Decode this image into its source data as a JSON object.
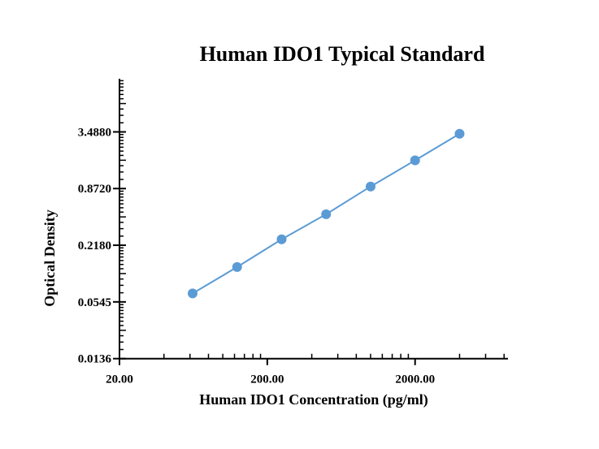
{
  "chart_data": {
    "type": "line",
    "title": "Human IDO1 Typical Standard",
    "xlabel": "Human IDO1 Concentration (pg/ml)",
    "ylabel": "Optical Density",
    "x_scale": "log",
    "y_scale": "log",
    "xlim": [
      20,
      8500
    ],
    "ylim": [
      0.0136,
      12.8
    ],
    "x_ticks": [
      "20.00",
      "200.00",
      "2000.00"
    ],
    "x_tick_values": [
      20,
      200,
      2000
    ],
    "y_ticks": [
      "0.0136",
      "0.0545",
      "0.2180",
      "0.8720",
      "3.4880"
    ],
    "y_tick_values": [
      0.0136,
      0.0545,
      0.218,
      0.872,
      3.488
    ],
    "grid": false,
    "series_color": "#5b9bd5",
    "x": [
      62.5,
      125,
      250,
      500,
      1000,
      2000,
      4000
    ],
    "y": [
      0.067,
      0.128,
      0.252,
      0.465,
      0.917,
      1.74,
      3.33
    ]
  }
}
